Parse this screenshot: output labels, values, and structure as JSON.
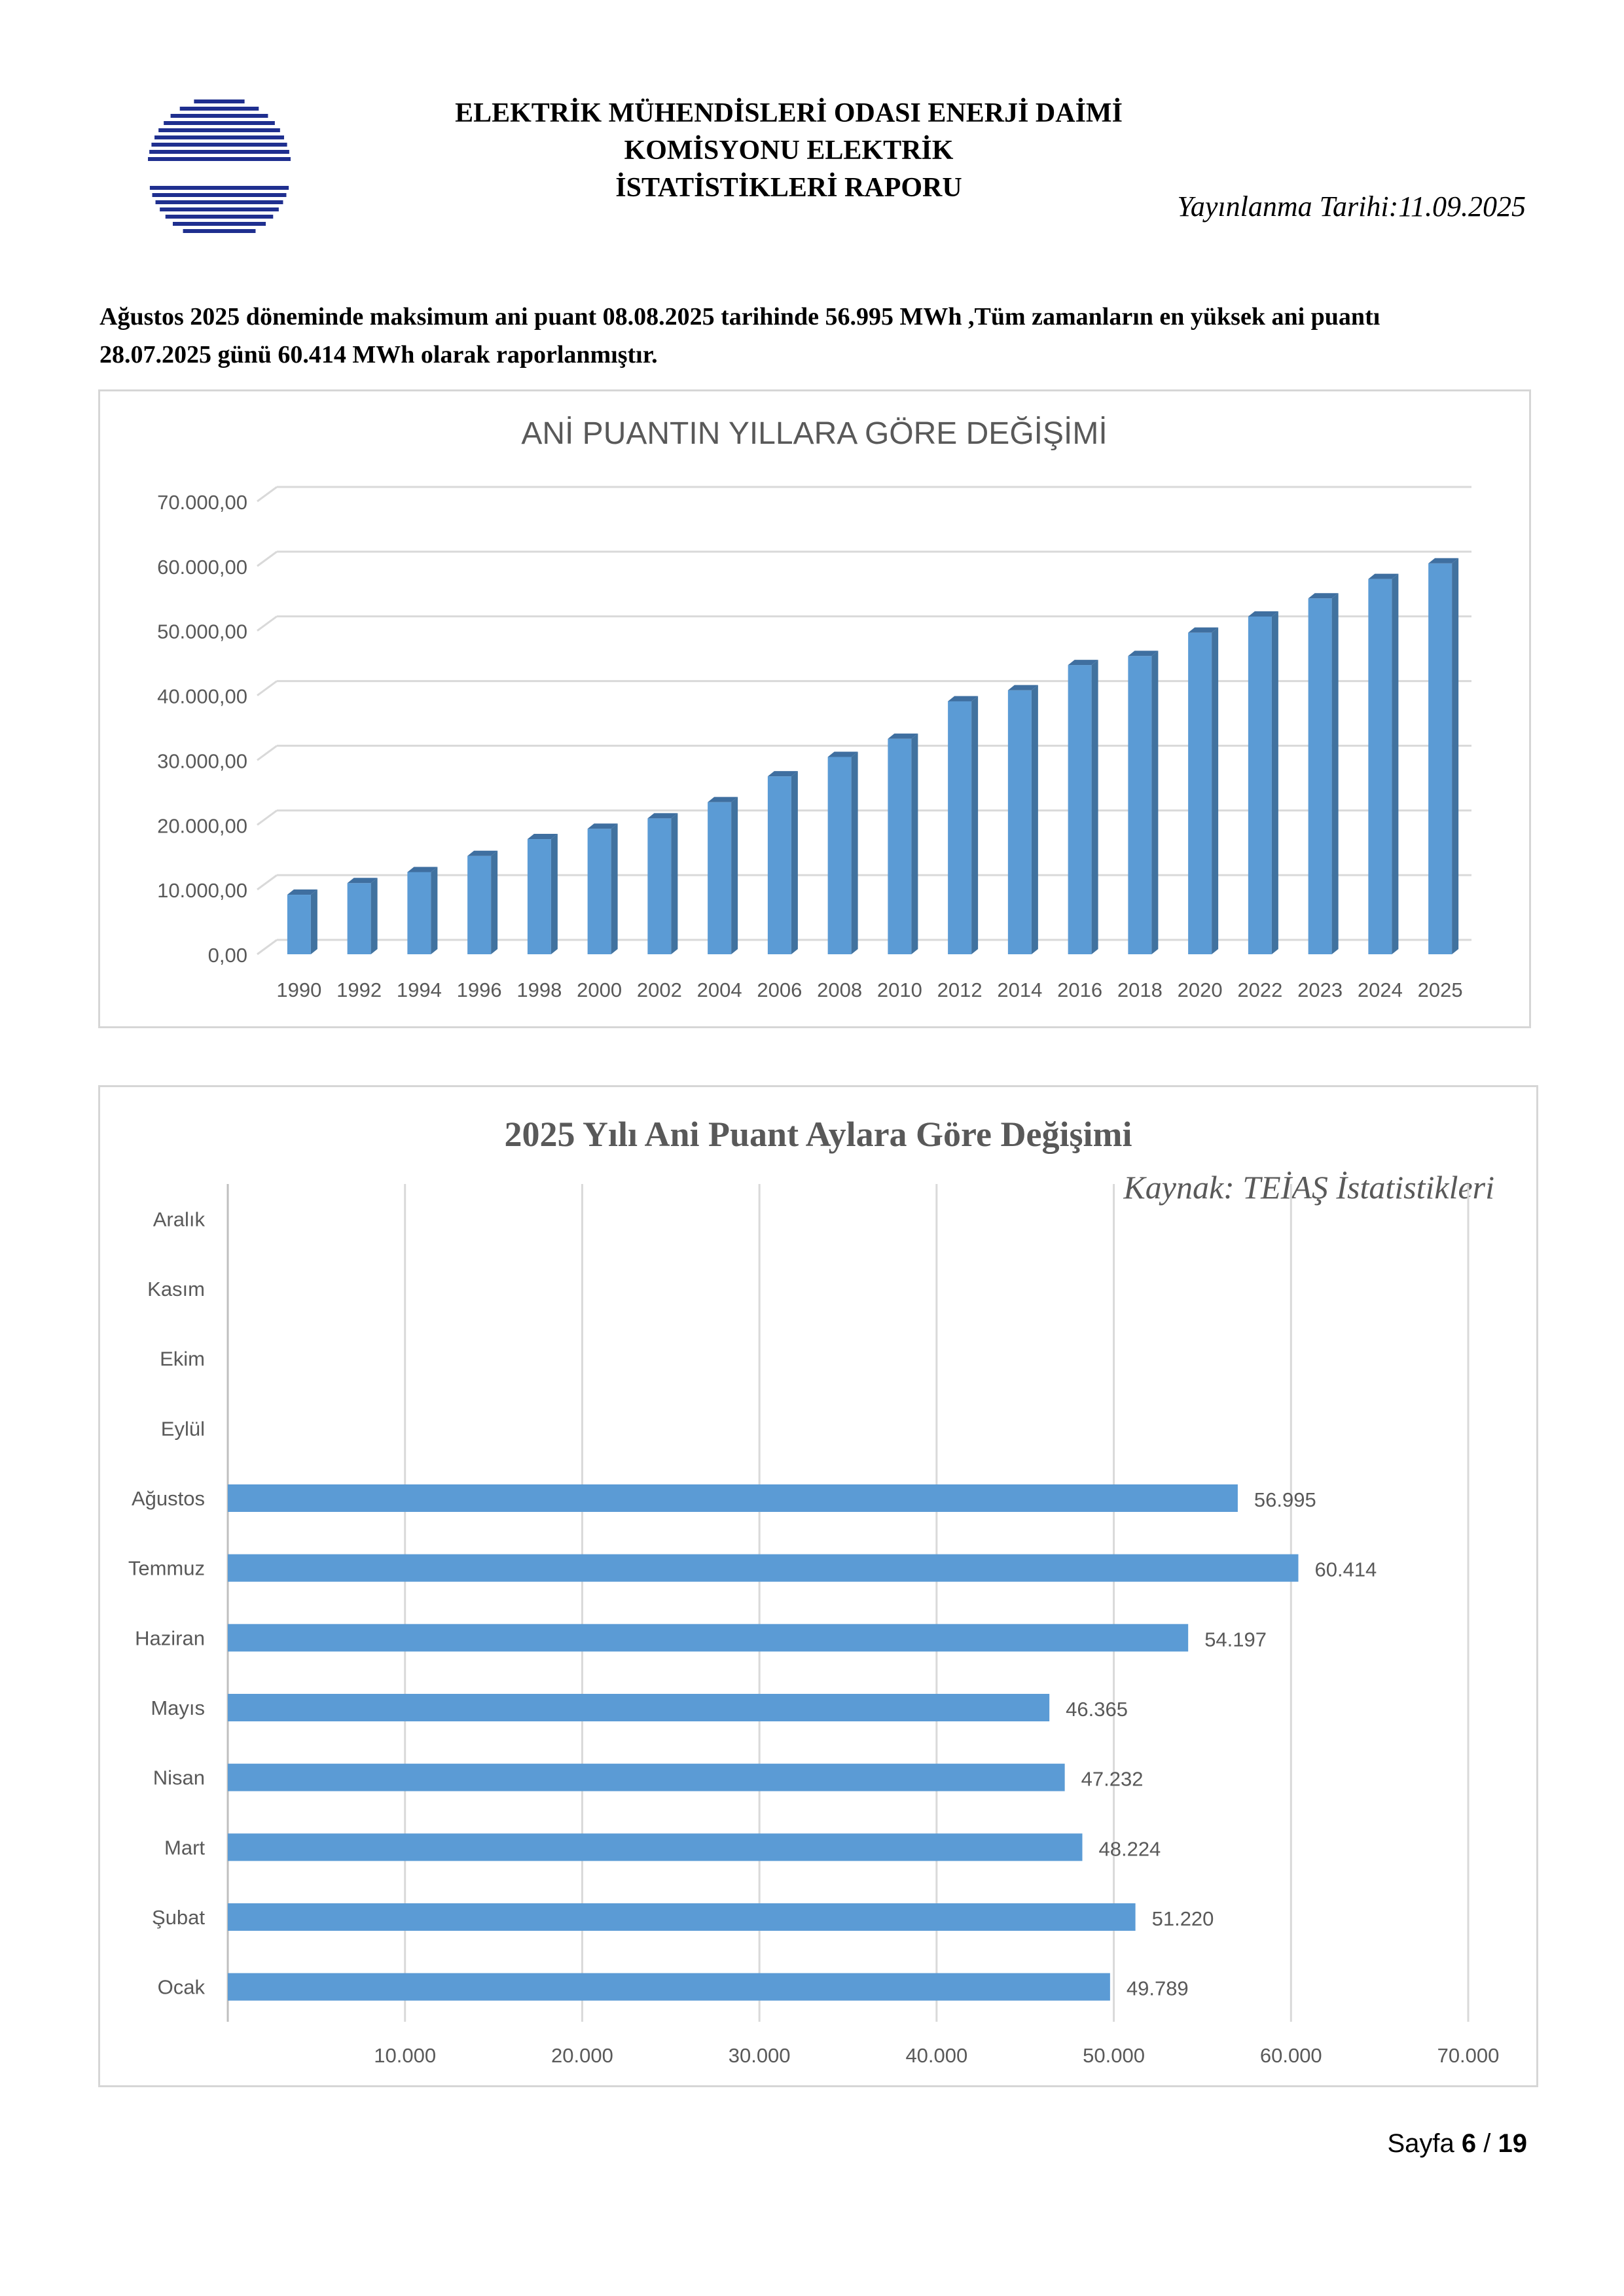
{
  "header": {
    "title_line1": "ELEKTRİK MÜHENDİSLERİ ODASI ENERJİ DAİMİ KOMİSYONU ELEKTRİK",
    "title_line2": "İSTATİSTİKLERİ RAPORU",
    "pub_label": "Yayınlanma Tarihi:",
    "pub_date": "11.09.2025"
  },
  "intro": {
    "line1": "Ağustos 2025 döneminde maksimum ani puant 08.08.2025 tarihinde 56.995 MWh ,Tüm zamanların en yüksek ani puantı",
    "line2": "28.07.2025 günü 60.414 MWh olarak raporlanmıştır."
  },
  "footer": {
    "page_label": "Sayfa",
    "page_current": "6",
    "page_sep": "/",
    "page_total": "19"
  },
  "colors": {
    "bar": "#5b9bd5",
    "bar_side": "#41729f",
    "bar_top": "#3f6fa0",
    "grid": "#d9d9d9",
    "axis_text": "#595959"
  },
  "chart_data": [
    {
      "type": "bar",
      "title": "ANİ PUANTIN YILLARA GÖRE DEĞİŞİMİ",
      "categories": [
        "1990",
        "1992",
        "1994",
        "1996",
        "1998",
        "2000",
        "2002",
        "2004",
        "2006",
        "2008",
        "2010",
        "2012",
        "2014",
        "2016",
        "2018",
        "2020",
        "2022",
        "2023",
        "2024",
        "2025"
      ],
      "values": [
        9200,
        11000,
        12700,
        15200,
        17800,
        19400,
        21000,
        23500,
        27500,
        30500,
        33300,
        39100,
        40800,
        44700,
        46100,
        49700,
        52200,
        55000,
        58000,
        60414
      ],
      "ylim": [
        0,
        70000
      ],
      "yticks": [
        "0,00",
        "10.000,00",
        "20.000,00",
        "30.000,00",
        "40.000,00",
        "50.000,00",
        "60.000,00",
        "70.000,00"
      ],
      "grid": true,
      "style": "3d-column"
    },
    {
      "type": "bar",
      "orientation": "horizontal",
      "title": "2025 Yılı Ani Puant Aylara Göre Değişimi",
      "annotation": "Kaynak: TEİAŞ İstatistikleri",
      "categories": [
        "Aralık",
        "Kasım",
        "Ekim",
        "Eylül",
        "Ağustos",
        "Temmuz",
        "Haziran",
        "Mayıs",
        "Nisan",
        "Mart",
        "Şubat",
        "Ocak"
      ],
      "values": [
        null,
        null,
        null,
        null,
        56995,
        60414,
        54197,
        46365,
        47232,
        48224,
        51220,
        49789
      ],
      "data_labels": [
        "",
        "",
        "",
        "",
        "56.995",
        "60.414",
        "54.197",
        "46.365",
        "47.232",
        "48.224",
        "51.220",
        "49.789"
      ],
      "xlim": [
        0,
        70000
      ],
      "xticks": [
        "10.000",
        "20.000",
        "30.000",
        "40.000",
        "50.000",
        "60.000",
        "70.000"
      ],
      "grid": true
    }
  ]
}
